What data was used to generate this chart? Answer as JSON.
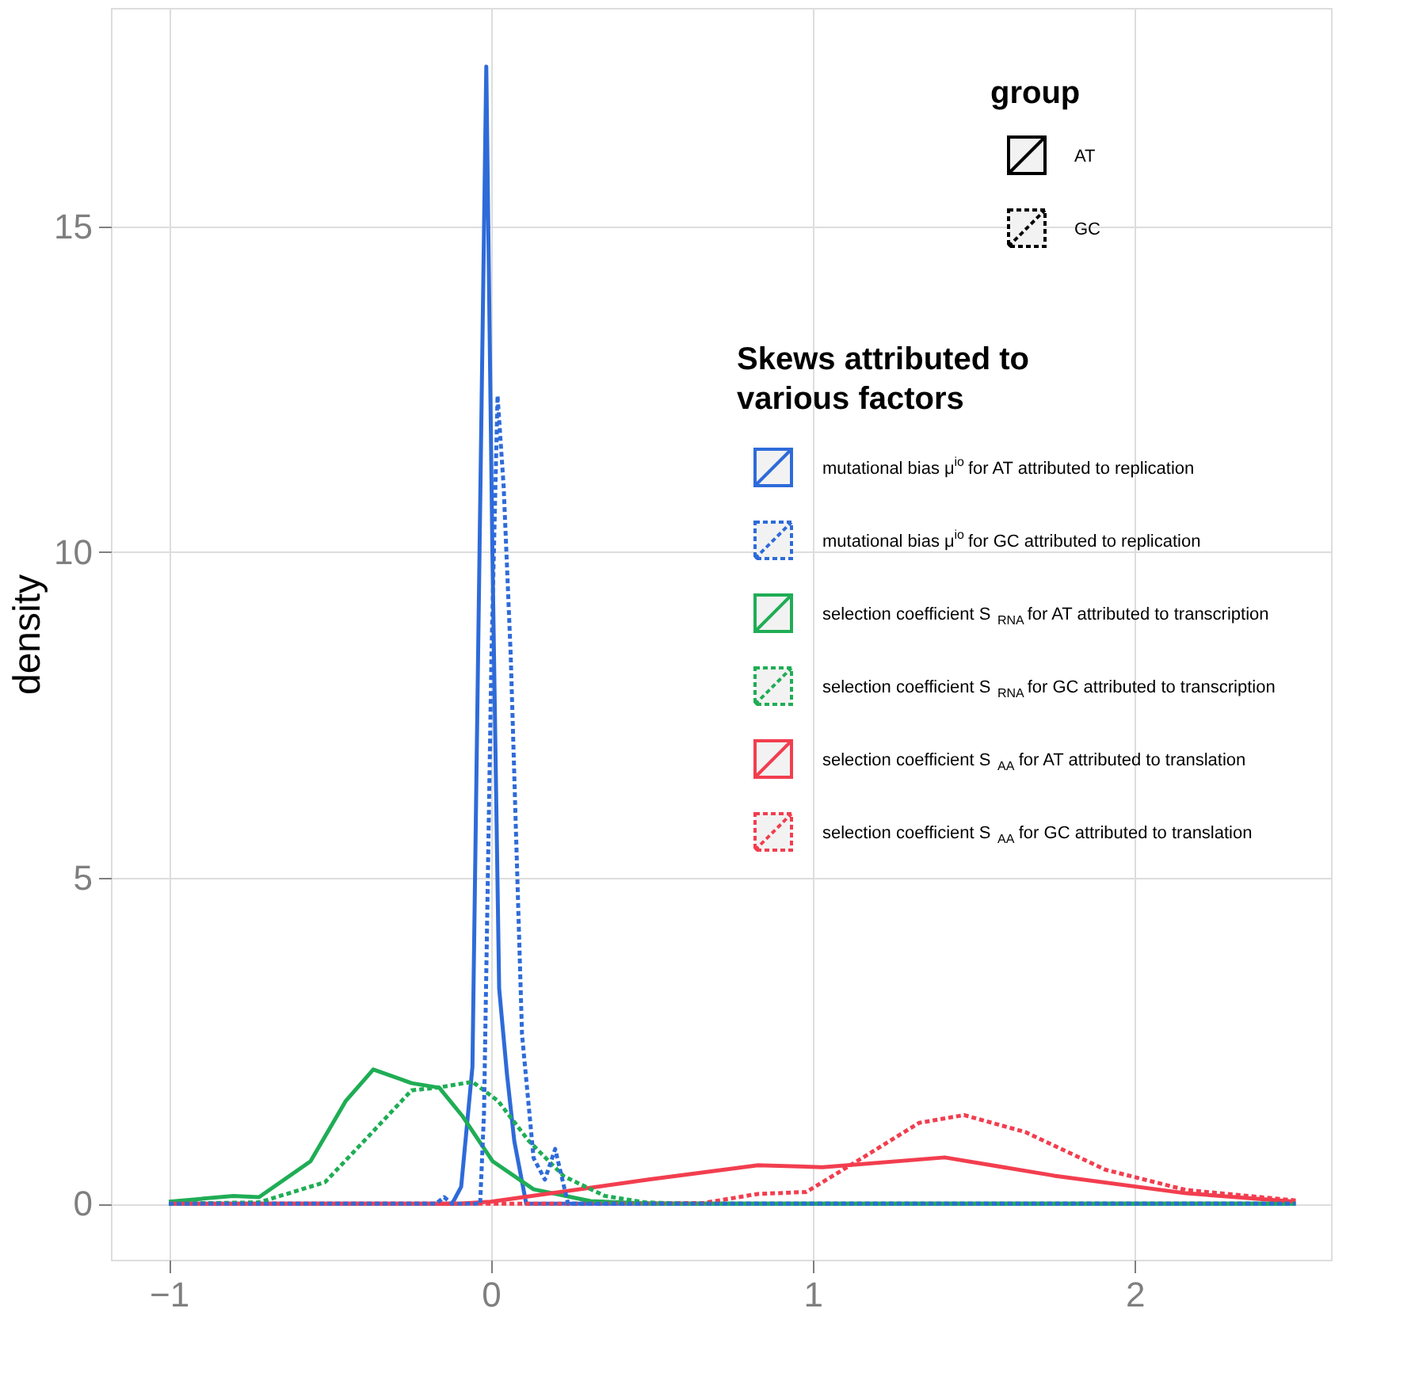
{
  "chart_data": {
    "type": "line",
    "ylabel": "density",
    "legend_title": "Skews attributed to various factors",
    "legend": "right",
    "grid": true,
    "xlim": [
      -1.18,
      2.61
    ],
    "ylim": [
      -0.86,
      18.35
    ],
    "xticks": [
      {
        "value": -1,
        "label": "−1"
      },
      0,
      1,
      2
    ],
    "yticks": [
      0,
      5,
      10,
      15
    ],
    "annotations": [
      "group",
      "AT",
      "GC"
    ],
    "series": [
      {
        "name": "mutational bias μ$^{io}$ for AT attributed to replication",
        "color": "#2e6bd9",
        "line_style": "solid",
        "x": [
          -1,
          -0.12,
          -0.092,
          -0.057,
          -0.035,
          -0.014,
          0.005,
          0.026,
          0.05,
          0.073,
          0.11,
          0.15,
          2.5
        ],
        "values": [
          0,
          0,
          0.26,
          2.1,
          10,
          17.45,
          10,
          3.3,
          2,
          0.96,
          0,
          0,
          0
        ]
      },
      {
        "name": "mutational bias μ$^{io}$ for GC attributed to replication",
        "color": "#2e6bd9",
        "line_style": "dotted",
        "x": [
          -1,
          -0.17,
          -0.145,
          -0.12,
          -0.033,
          -0.021,
          0.002,
          0.021,
          0.04,
          0.062,
          0.097,
          0.133,
          0.168,
          0.2,
          0.24,
          2.5
        ],
        "values": [
          0,
          0,
          0.1,
          0,
          0,
          1.4,
          8.4,
          12.4,
          11,
          8.4,
          2.6,
          0.7,
          0.37,
          0.84,
          0,
          0
        ]
      },
      {
        "name": "selection coefficient S$_{RNA}$ for AT attributed to transcription",
        "color": "#1fad55",
        "line_style": "solid",
        "x": [
          -1,
          -0.8,
          -0.72,
          -0.56,
          -0.45,
          -0.365,
          -0.246,
          -0.16,
          -0.089,
          0.006,
          0.133,
          0.31,
          0.5,
          2.5
        ],
        "values": [
          0.03,
          0.12,
          0.1,
          0.65,
          1.58,
          2.06,
          1.85,
          1.78,
          1.35,
          0.65,
          0.22,
          0.04,
          0,
          0
        ]
      },
      {
        "name": "selection coefficient S$_{RNA}$ for GC attributed to transcription",
        "color": "#1fad55",
        "line_style": "dotted",
        "x": [
          -1,
          -0.72,
          -0.515,
          -0.373,
          -0.246,
          -0.167,
          -0.057,
          0.022,
          0.117,
          0.227,
          0.354,
          0.48,
          0.6,
          2.5
        ],
        "values": [
          0,
          0.02,
          0.33,
          1.07,
          1.74,
          1.78,
          1.87,
          1.58,
          0.97,
          0.42,
          0.12,
          0.02,
          0,
          0
        ]
      },
      {
        "name": "selection coefficient S$_{AA}$ for AT attributed to translation",
        "color": "#f23e4f",
        "line_style": "solid",
        "x": [
          -1,
          -0.1,
          0,
          0.49,
          0.83,
          1.03,
          1.41,
          1.75,
          2.16,
          2.5
        ],
        "values": [
          0,
          0,
          0.03,
          0.37,
          0.59,
          0.56,
          0.71,
          0.43,
          0.16,
          0.03
        ]
      },
      {
        "name": "selection coefficient S$_{AA}$ for GC attributed to translation",
        "color": "#f23e4f",
        "line_style": "dotted",
        "x": [
          -1,
          0.3,
          0.66,
          0.83,
          0.98,
          1.16,
          1.33,
          1.47,
          1.66,
          1.91,
          2.16,
          2.5
        ],
        "values": [
          0,
          0,
          0.01,
          0.15,
          0.18,
          0.72,
          1.24,
          1.36,
          1.1,
          0.52,
          0.21,
          0.05
        ]
      }
    ]
  }
}
